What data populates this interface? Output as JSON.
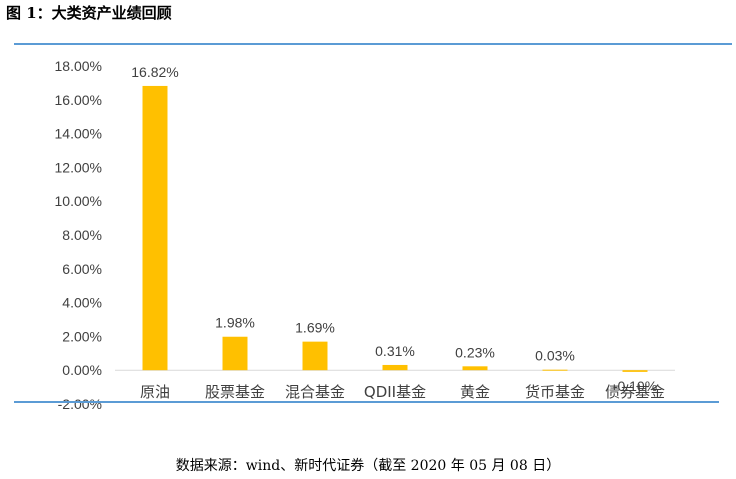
{
  "figure_title": "图 1：大类资产业绩回顾",
  "source_note": "数据来源：wind、新时代证券（截至 2020 年 05 月 08 日）",
  "colors": {
    "bar": "#ffc000",
    "rule": "#5b9bd5",
    "zero_line": "#d9d9d9"
  },
  "chart_data": {
    "type": "bar",
    "title": "",
    "xlabel": "",
    "ylabel": "",
    "categories": [
      "原油",
      "股票基金",
      "混合基金",
      "QDII基金",
      "黄金",
      "货币基金",
      "债券基金"
    ],
    "values": [
      16.82,
      1.98,
      1.69,
      0.31,
      0.23,
      0.03,
      -0.1
    ],
    "data_labels": [
      "16.82%",
      "1.98%",
      "1.69%",
      "0.31%",
      "0.23%",
      "0.03%",
      "-0.10%"
    ],
    "yticks": [
      "18.00%",
      "16.00%",
      "14.00%",
      "12.00%",
      "10.00%",
      "8.00%",
      "6.00%",
      "4.00%",
      "2.00%",
      "0.00%",
      "-2.00%"
    ],
    "ylim": [
      -2,
      18
    ],
    "grid": false,
    "legend": "none"
  }
}
